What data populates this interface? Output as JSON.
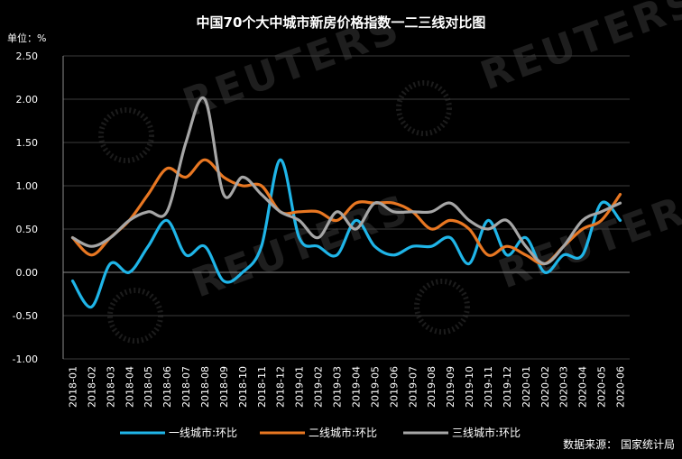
{
  "chart_data": {
    "type": "line",
    "title": "中国70个大中城市新房价格指数一二三线对比图",
    "unit_label": "单位：%",
    "source": "数据来源： 国家统计局",
    "watermark": "REUTERS",
    "ylim": [
      -1.0,
      2.5
    ],
    "y_ticks": [
      "2.50",
      "2.00",
      "1.50",
      "1.00",
      "0.50",
      "0.00",
      "-0.50",
      "-1.00"
    ],
    "categories": [
      "2018-01",
      "2018-02",
      "2018-03",
      "2018-04",
      "2018-05",
      "2018-06",
      "2018-07",
      "2018-08",
      "2018-09",
      "2018-10",
      "2018-11",
      "2018-12",
      "2019-01",
      "2019-02",
      "2019-03",
      "2019-04",
      "2019-05",
      "2019-06",
      "2019-07",
      "2019-08",
      "2019-09",
      "2019-10",
      "2019-11",
      "2019-12",
      "2020-01",
      "2020-02",
      "2020-03",
      "2020-04",
      "2020-05",
      "2020-06"
    ],
    "legend_position": "bottom",
    "series": [
      {
        "name": "一线城市:环比",
        "color": "#1fb5e8",
        "values": [
          -0.1,
          -0.4,
          0.1,
          0.0,
          0.3,
          0.6,
          0.2,
          0.3,
          -0.1,
          0.0,
          0.3,
          1.3,
          0.4,
          0.3,
          0.2,
          0.6,
          0.3,
          0.2,
          0.3,
          0.3,
          0.4,
          0.1,
          0.6,
          0.2,
          0.4,
          0.0,
          0.2,
          0.2,
          0.8,
          0.6
        ]
      },
      {
        "name": "二线城市:环比",
        "color": "#e87722",
        "values": [
          0.4,
          0.2,
          0.4,
          0.6,
          0.9,
          1.2,
          1.1,
          1.3,
          1.1,
          1.0,
          1.0,
          0.7,
          0.7,
          0.7,
          0.6,
          0.8,
          0.8,
          0.8,
          0.7,
          0.5,
          0.6,
          0.5,
          0.2,
          0.3,
          0.2,
          0.1,
          0.3,
          0.5,
          0.6,
          0.9
        ]
      },
      {
        "name": "三线城市:环比",
        "color": "#a6a6a6",
        "values": [
          0.4,
          0.3,
          0.4,
          0.6,
          0.7,
          0.7,
          1.5,
          2.0,
          0.9,
          1.1,
          0.9,
          0.7,
          0.6,
          0.4,
          0.7,
          0.5,
          0.8,
          0.7,
          0.7,
          0.7,
          0.8,
          0.6,
          0.5,
          0.6,
          0.3,
          0.1,
          0.3,
          0.6,
          0.7,
          0.8
        ]
      }
    ]
  }
}
